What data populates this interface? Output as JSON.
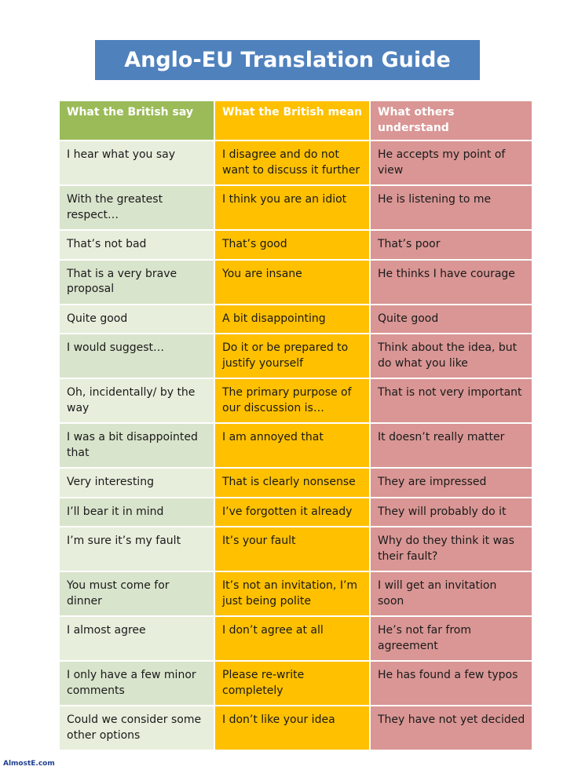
{
  "title": "Anglo-EU Translation Guide",
  "headers": [
    "What the British say",
    "What the British mean",
    "What others understand"
  ],
  "rows": [
    [
      "I hear what you say",
      "I disagree and do not want to discuss it further",
      "He accepts my point of view"
    ],
    [
      "With the greatest respect…",
      "I think you are an idiot",
      "He is listening to me"
    ],
    [
      "That’s not bad",
      "That’s good",
      "That’s poor"
    ],
    [
      "That is a very brave proposal",
      "You are insane",
      "He thinks I have courage"
    ],
    [
      "Quite good",
      "A bit disappointing",
      "Quite good"
    ],
    [
      "I would suggest…",
      "Do it or be prepared to justify yourself",
      "Think about the idea, but do what you like"
    ],
    [
      "Oh, incidentally/ by the way",
      "The primary purpose of our discussion is…",
      "That is not very important"
    ],
    [
      "I was a bit disappointed that",
      "I am annoyed that",
      "It doesn’t really matter"
    ],
    [
      "Very interesting",
      "That is clearly nonsense",
      "They are impressed"
    ],
    [
      "I’ll bear it in mind",
      "I’ve forgotten it already",
      "They will probably do it"
    ],
    [
      "I’m sure it’s my fault",
      "It’s your fault",
      "Why do they think it was their fault?"
    ],
    [
      "You must come for dinner",
      "It’s not an invitation, I’m just being polite",
      "I will get an invitation soon"
    ],
    [
      "I almost agree",
      "I don’t agree at all",
      "He’s not far from agreement"
    ],
    [
      "I only have a few minor comments",
      "Please re-write completely",
      "He has found a few typos"
    ],
    [
      "Could we consider some other options",
      "I don’t like your idea",
      "They have not yet decided"
    ]
  ],
  "watermark": "AlmostE.com",
  "colors": {
    "title_bg": "#4f81bd",
    "col1_header": "#9bbb59",
    "col2_header": "#ffc000",
    "col3_header": "#d99694",
    "col1_cell": "#e7eedc",
    "col2_cell": "#ffc000",
    "col3_cell": "#d99694"
  }
}
